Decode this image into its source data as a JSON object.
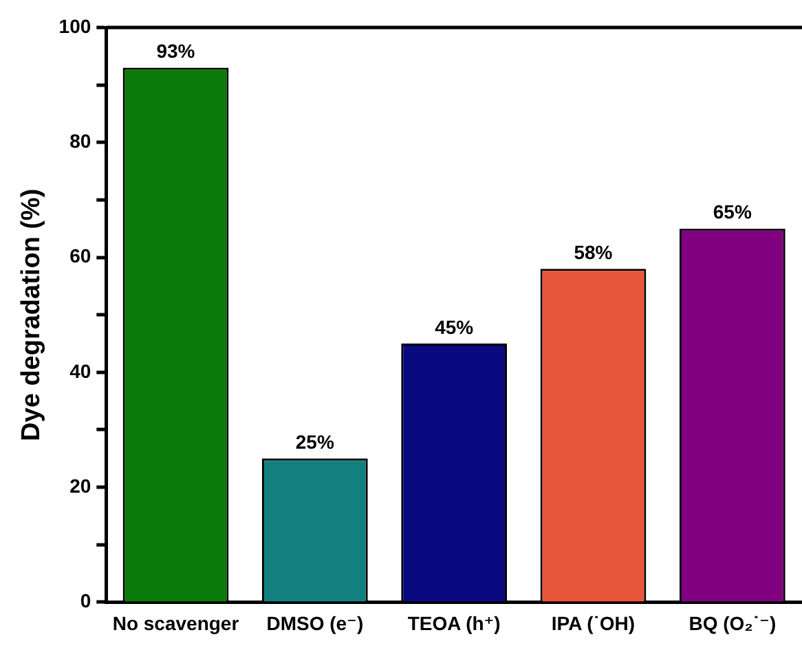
{
  "chart_data": {
    "type": "bar",
    "ylabel": "Dye degradation (%)",
    "categories": [
      "No scavenger",
      "DMSO (e⁻)",
      "TEOA (h⁺)",
      "IPA (˙OH)",
      "BQ (O₂˙⁻)"
    ],
    "values": [
      93,
      25,
      45,
      58,
      65
    ],
    "colors": [
      "#0a7a0a",
      "#138080",
      "#0a0a80",
      "#e8553a",
      "#800080"
    ],
    "value_labels": [
      "93%",
      "25%",
      "45%",
      "58%",
      "65%"
    ],
    "ylim": [
      0,
      100
    ],
    "yticks": [
      0,
      {
        "value": 10,
        "label": null
      },
      20,
      {
        "value": 30,
        "label": null
      },
      40,
      {
        "value": 50,
        "label": null
      },
      60,
      {
        "value": 70,
        "label": null
      },
      80,
      {
        "value": 90,
        "label": null
      },
      100
    ],
    "grid": false,
    "legend": false
  }
}
